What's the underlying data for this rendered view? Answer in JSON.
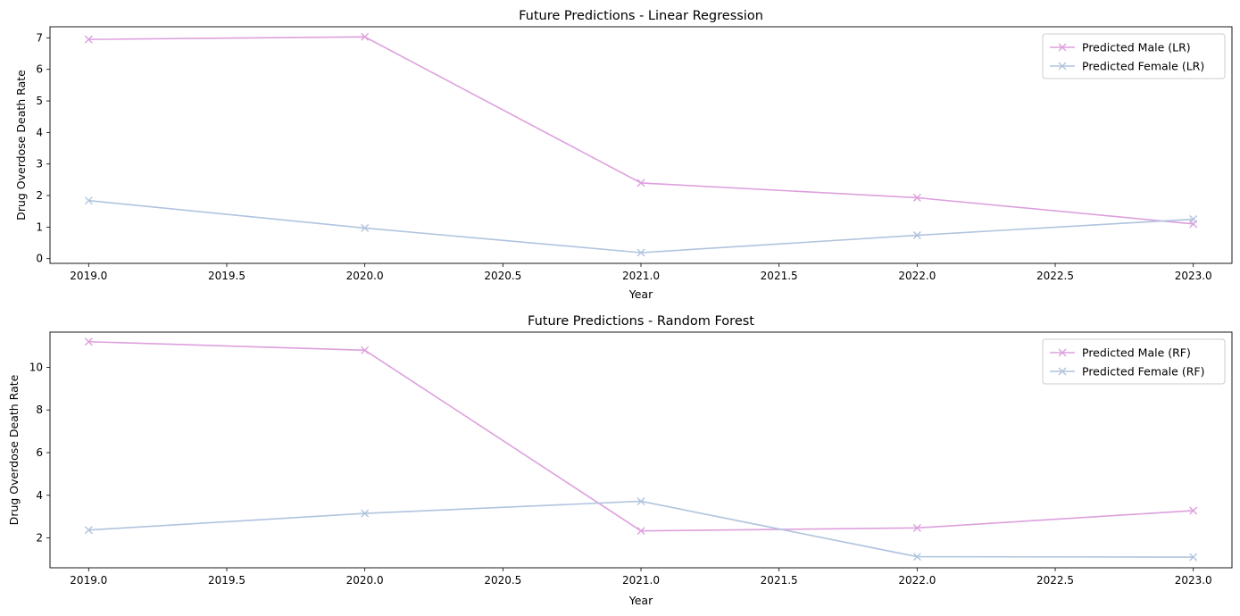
{
  "chart_data": [
    {
      "type": "line",
      "title": "Future Predictions - Linear Regression",
      "xlabel": "Year",
      "ylabel": "Drug Overdose Death Rate",
      "xlim": [
        2018.86,
        2023.14
      ],
      "ylim": [
        -0.15,
        7.35
      ],
      "xticks": [
        2019.0,
        2019.5,
        2020.0,
        2020.5,
        2021.0,
        2021.5,
        2022.0,
        2022.5,
        2023.0
      ],
      "xtick_labels": [
        "2019.0",
        "2019.5",
        "2020.0",
        "2020.5",
        "2021.0",
        "2021.5",
        "2022.0",
        "2022.5",
        "2023.0"
      ],
      "yticks": [
        0,
        1,
        2,
        3,
        4,
        5,
        6,
        7
      ],
      "ytick_labels": [
        "0",
        "1",
        "2",
        "3",
        "4",
        "5",
        "6",
        "7"
      ],
      "grid": false,
      "legend": "top-right",
      "marker": "x",
      "x": [
        2019,
        2020,
        2021,
        2022,
        2023
      ],
      "series": [
        {
          "name": "Predicted Male (LR)",
          "color": "#dda0dd",
          "values": [
            6.95,
            7.03,
            2.4,
            1.93,
            1.1
          ]
        },
        {
          "name": "Predicted Female (LR)",
          "color": "#b0c4de",
          "values": [
            1.84,
            0.97,
            0.19,
            0.74,
            1.25
          ]
        }
      ]
    },
    {
      "type": "line",
      "title": "Future Predictions - Random Forest",
      "xlabel": "Year",
      "ylabel": "Drug Overdose Death Rate",
      "xlim": [
        2018.86,
        2023.14
      ],
      "ylim": [
        0.6,
        11.65
      ],
      "xticks": [
        2019.0,
        2019.5,
        2020.0,
        2020.5,
        2021.0,
        2021.5,
        2022.0,
        2022.5,
        2023.0
      ],
      "xtick_labels": [
        "2019.0",
        "2019.5",
        "2020.0",
        "2020.5",
        "2021.0",
        "2021.5",
        "2022.0",
        "2022.5",
        "2023.0"
      ],
      "yticks": [
        2,
        4,
        6,
        8,
        10
      ],
      "ytick_labels": [
        "2",
        "4",
        "6",
        "8",
        "10"
      ],
      "grid": false,
      "legend": "top-right",
      "marker": "x",
      "x": [
        2019,
        2020,
        2021,
        2022,
        2023
      ],
      "series": [
        {
          "name": "Predicted Male (RF)",
          "color": "#dda0dd",
          "values": [
            11.2,
            10.8,
            2.33,
            2.47,
            3.28
          ]
        },
        {
          "name": "Predicted Female (RF)",
          "color": "#b0c4de",
          "values": [
            2.37,
            3.15,
            3.72,
            1.12,
            1.1
          ]
        }
      ]
    }
  ]
}
